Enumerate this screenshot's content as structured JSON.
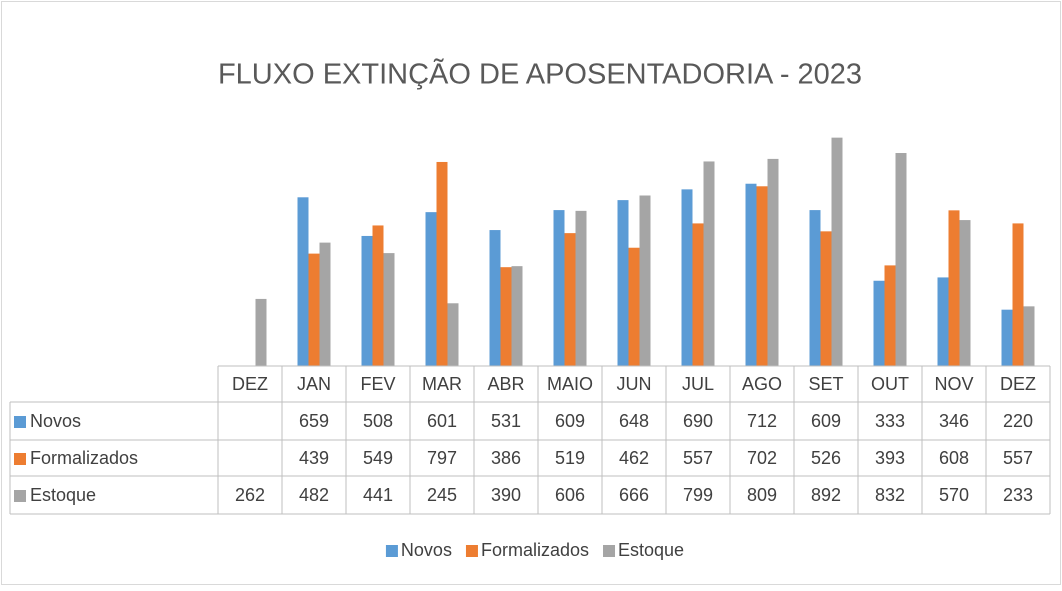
{
  "chart_data": {
    "type": "bar",
    "title": "FLUXO EXTINÇÃO DE APOSENTADORIA - 2023",
    "categories": [
      "DEZ",
      "JAN",
      "FEV",
      "MAR",
      "ABR",
      "MAIO",
      "JUN",
      "JUL",
      "AGO",
      "SET",
      "OUT",
      "NOV",
      "DEZ"
    ],
    "series": [
      {
        "name": "Novos",
        "color": "#5b9bd5",
        "values": [
          null,
          659,
          508,
          601,
          531,
          609,
          648,
          690,
          712,
          609,
          333,
          346,
          220
        ]
      },
      {
        "name": "Formalizados",
        "color": "#ed7d31",
        "values": [
          null,
          439,
          549,
          797,
          386,
          519,
          462,
          557,
          702,
          526,
          393,
          608,
          557
        ]
      },
      {
        "name": "Estoque",
        "color": "#a5a5a5",
        "values": [
          262,
          482,
          441,
          245,
          390,
          606,
          666,
          799,
          809,
          892,
          832,
          570,
          233
        ]
      }
    ],
    "ylim": [
      0,
      1000
    ],
    "data_table": true,
    "legend": "bottom"
  }
}
